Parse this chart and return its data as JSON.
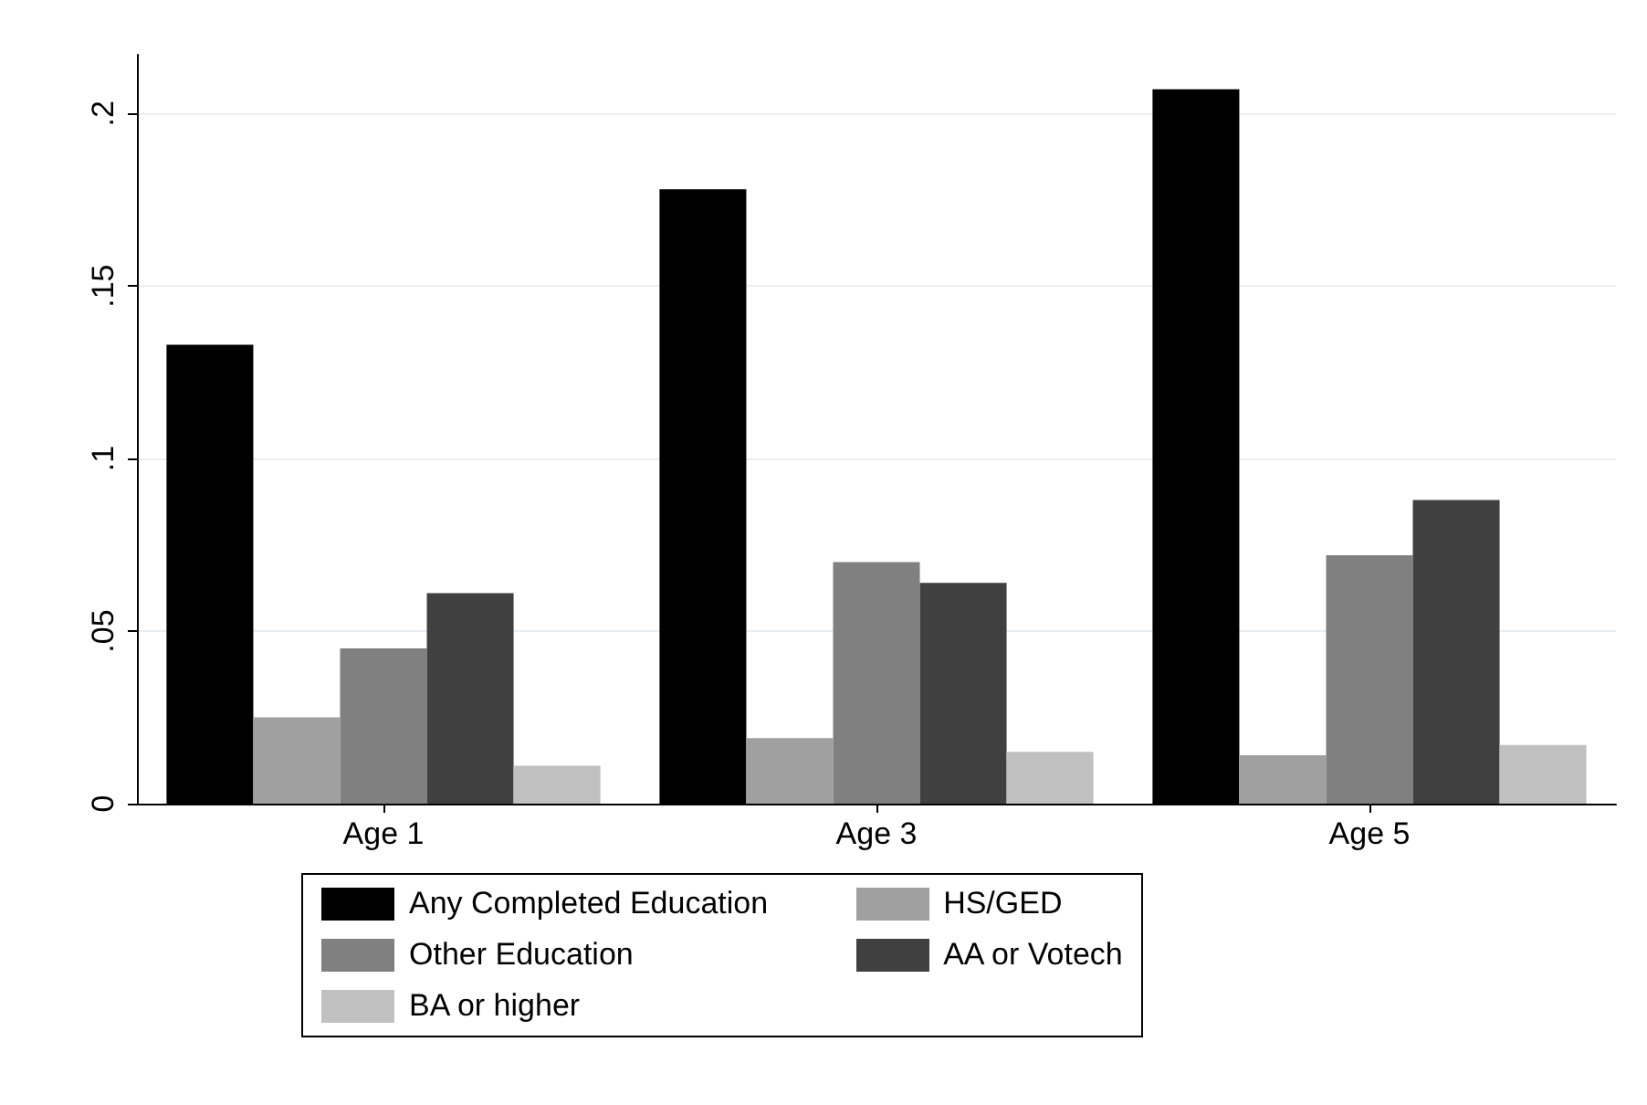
{
  "chart_data": {
    "type": "bar",
    "categories": [
      "Age 1",
      "Age 3",
      "Age 5"
    ],
    "series": [
      {
        "name": "Any Completed Education",
        "color": "#000000",
        "values": [
          0.133,
          0.178,
          0.207
        ]
      },
      {
        "name": "HS/GED",
        "color": "#a0a0a0",
        "values": [
          0.025,
          0.019,
          0.014
        ]
      },
      {
        "name": "Other Education",
        "color": "#808080",
        "values": [
          0.045,
          0.07,
          0.072
        ]
      },
      {
        "name": "AA or Votech",
        "color": "#404040",
        "values": [
          0.061,
          0.064,
          0.088
        ]
      },
      {
        "name": "BA or higher",
        "color": "#c0c0c0",
        "values": [
          0.011,
          0.015,
          0.017
        ]
      }
    ],
    "ylim": [
      0,
      0.217
    ],
    "yticks": [
      {
        "value": 0,
        "label": "0"
      },
      {
        "value": 0.05,
        "label": ".05"
      },
      {
        "value": 0.1,
        "label": ".1"
      },
      {
        "value": 0.15,
        "label": ".15"
      },
      {
        "value": 0.2,
        "label": ".2"
      }
    ],
    "grid": "y",
    "legend": "bottom"
  }
}
